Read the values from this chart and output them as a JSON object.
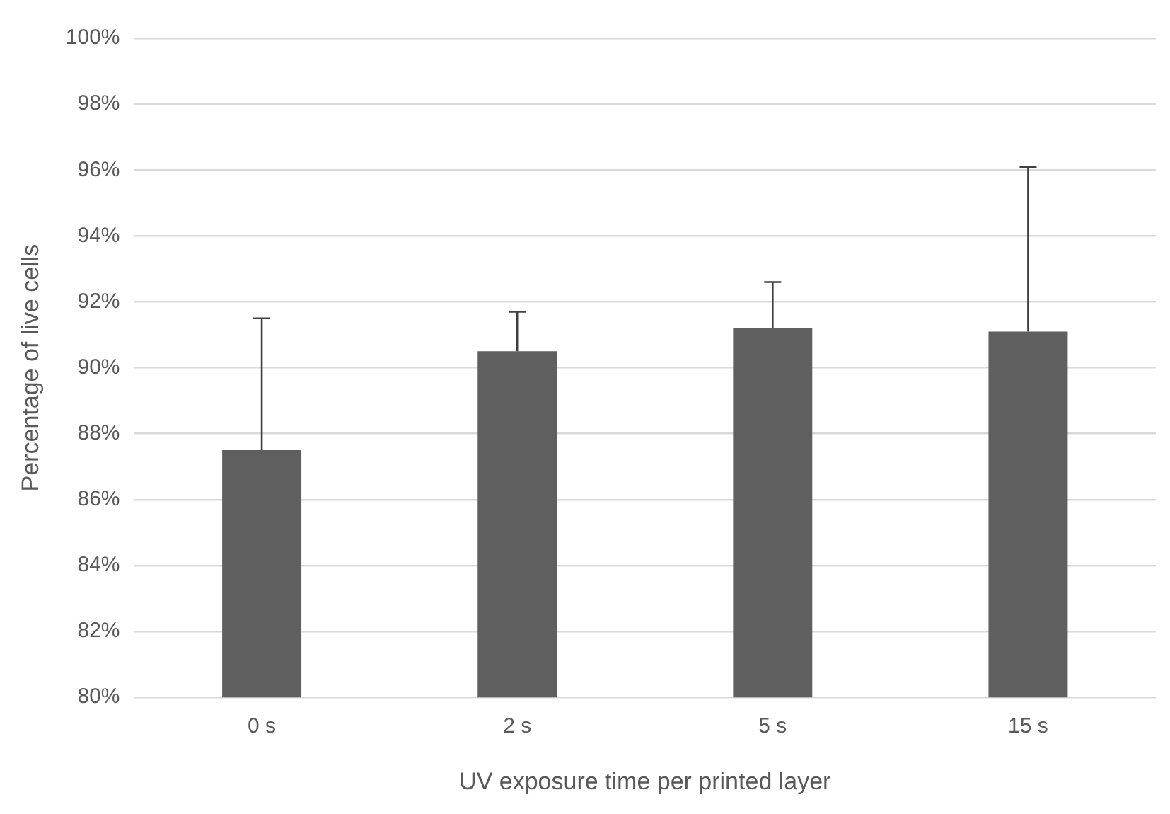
{
  "chart_data": {
    "type": "bar",
    "xlabel": "UV exposure time per printed layer",
    "ylabel": "Percentage of live cells",
    "categories": [
      "0 s",
      "2 s",
      "5 s",
      "15 s"
    ],
    "values": [
      87.5,
      90.5,
      91.2,
      91.1
    ],
    "errors": [
      [
        87.5,
        91.5
      ],
      [
        90.5,
        91.7
      ],
      [
        91.2,
        92.6
      ],
      [
        91.1,
        96.1
      ]
    ],
    "color": "#5f5f5f",
    "ylim": [
      80,
      100
    ],
    "yticks": [
      {
        "value": 80,
        "label": "80%"
      },
      {
        "value": 82,
        "label": "82%"
      },
      {
        "value": 84,
        "label": "84%"
      },
      {
        "value": 86,
        "label": "86%"
      },
      {
        "value": 88,
        "label": "88%"
      },
      {
        "value": 90,
        "label": "90%"
      },
      {
        "value": 92,
        "label": "92%"
      },
      {
        "value": 94,
        "label": "94%"
      },
      {
        "value": 96,
        "label": "96%"
      },
      {
        "value": 98,
        "label": "98%"
      },
      {
        "value": 100,
        "label": "100%"
      }
    ],
    "grid": "y",
    "legend": false
  }
}
